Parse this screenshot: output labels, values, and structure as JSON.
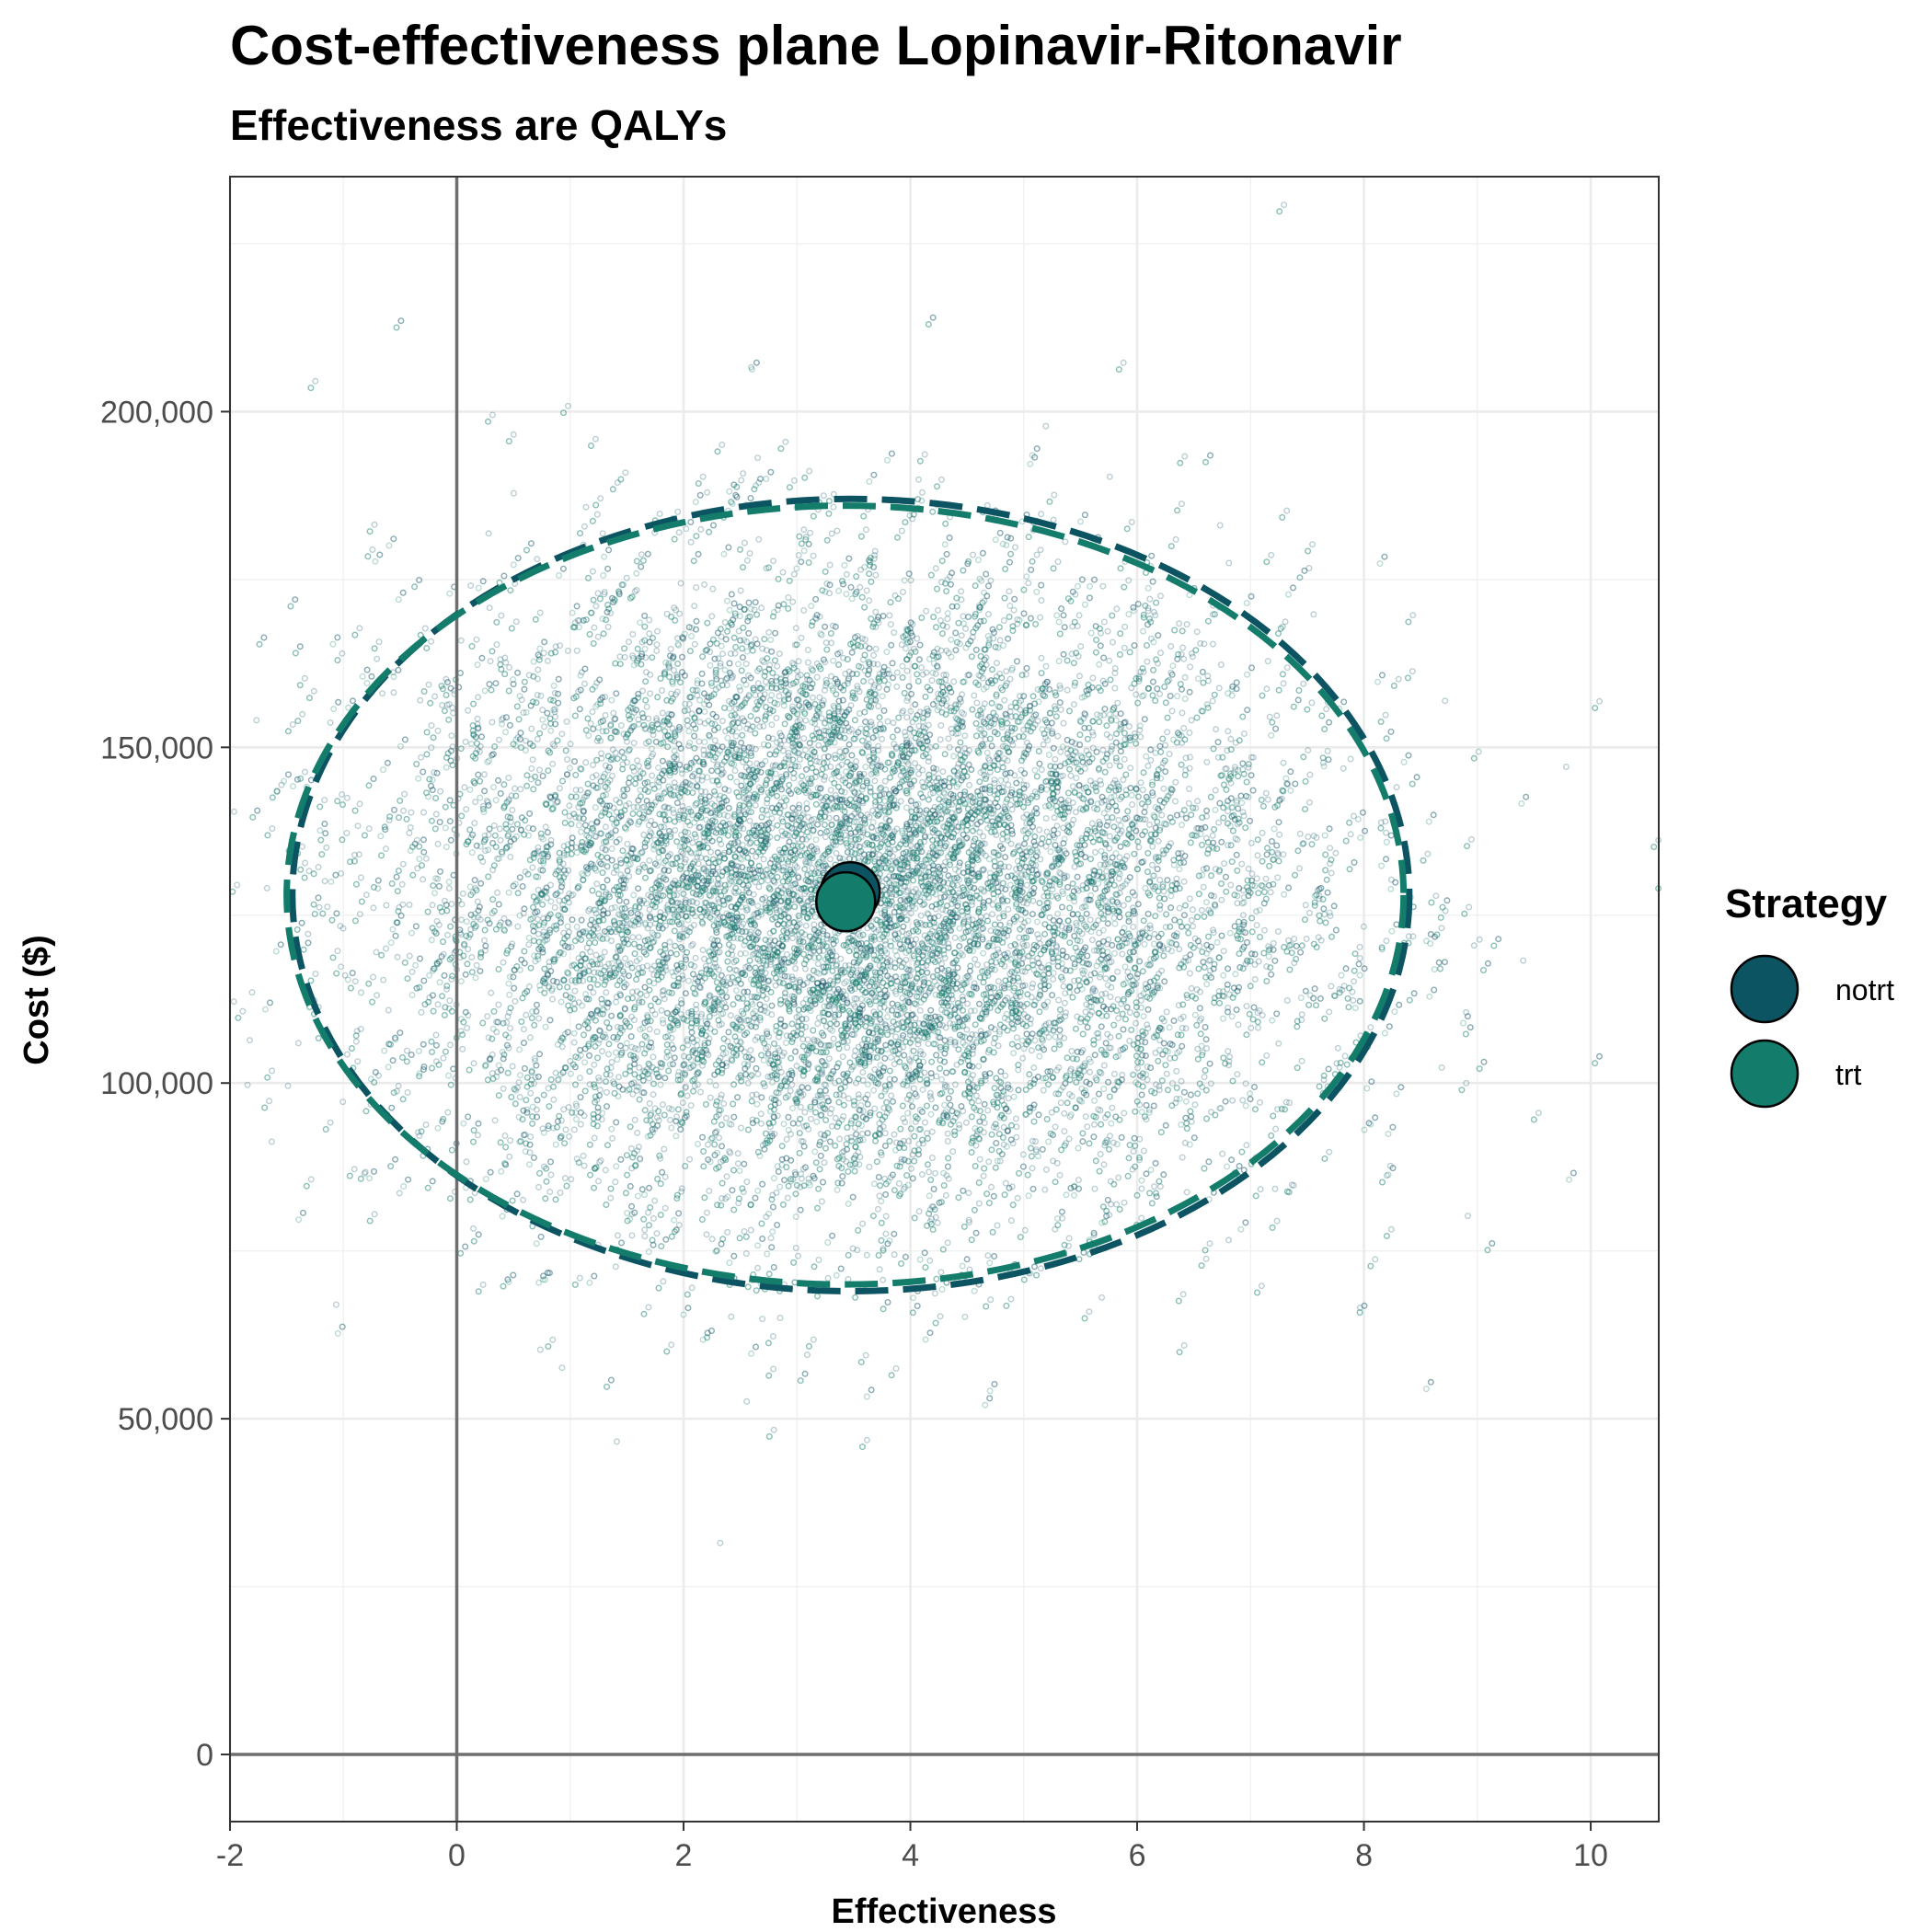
{
  "chart_data": {
    "type": "scatter",
    "title": "Cost-effectiveness plane Lopinavir-Ritonavir",
    "subtitle": "Effectiveness are QALYs",
    "xlabel": "Effectiveness",
    "ylabel": "Cost ($)",
    "xlim": [
      -2,
      10.6
    ],
    "ylim": [
      -10000,
      235000
    ],
    "x_ticks": [
      -2,
      0,
      2,
      4,
      6,
      8,
      10
    ],
    "x_tick_labels": [
      "-2",
      "0",
      "2",
      "4",
      "6",
      "8",
      "10"
    ],
    "y_ticks": [
      0,
      50000,
      100000,
      150000,
      200000
    ],
    "y_tick_labels": [
      "0",
      "50,000",
      "100,000",
      "150,000",
      "200,000"
    ],
    "grid": true,
    "reference_lines": {
      "x": 0,
      "y": 0
    },
    "legend": {
      "title": "Strategy",
      "position": "right",
      "entries": [
        {
          "label": "notrt",
          "color": "#0d5463"
        },
        {
          "label": "trt",
          "color": "#137c6b"
        }
      ]
    },
    "series": [
      {
        "name": "notrt",
        "color": "#0d5463",
        "mean": {
          "x": 3.47,
          "y": 128500
        },
        "ellipse": {
          "center_x": 3.47,
          "center_y": 128000,
          "x_min": -1.45,
          "x_max": 8.4,
          "y_min": 69000,
          "y_max": 187000
        },
        "cloud": {
          "x_mean": 3.47,
          "x_sd": 2.0,
          "y_mean": 128000,
          "y_sd": 24000,
          "n_points": 9000
        }
      },
      {
        "name": "trt",
        "color": "#137c6b",
        "mean": {
          "x": 3.43,
          "y": 127000
        },
        "ellipse": {
          "center_x": 3.43,
          "center_y": 127500,
          "x_min": -1.5,
          "x_max": 8.35,
          "y_min": 70000,
          "y_max": 186000
        },
        "cloud": {
          "x_mean": 3.43,
          "x_sd": 2.0,
          "y_mean": 127000,
          "y_sd": 24000,
          "n_points": 9000
        }
      }
    ]
  }
}
